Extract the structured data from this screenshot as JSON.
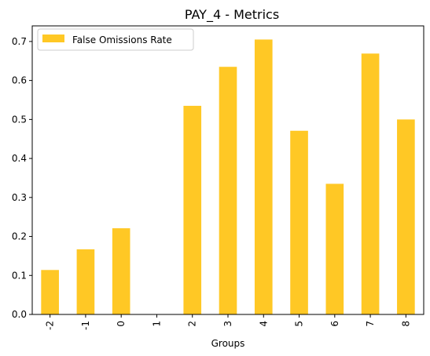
{
  "chart_data": {
    "type": "bar",
    "title": "PAY_4 - Metrics",
    "xlabel": "Groups",
    "ylabel": "",
    "categories": [
      "-2",
      "-1",
      "0",
      "1",
      "2",
      "3",
      "4",
      "5",
      "6",
      "7",
      "8"
    ],
    "series": [
      {
        "name": "False Omissions Rate",
        "color": "#FFC825",
        "values": [
          0.114,
          0.167,
          0.221,
          0.0,
          0.535,
          0.635,
          0.705,
          0.471,
          0.335,
          0.669,
          0.5
        ]
      }
    ],
    "ylim": [
      0,
      0.74
    ],
    "yticks": [
      0.0,
      0.1,
      0.2,
      0.3,
      0.4,
      0.5,
      0.6,
      0.7
    ],
    "ytick_labels": [
      "0.0",
      "0.1",
      "0.2",
      "0.3",
      "0.4",
      "0.5",
      "0.6",
      "0.7"
    ],
    "legend_position": "top-left",
    "grid": false
  }
}
